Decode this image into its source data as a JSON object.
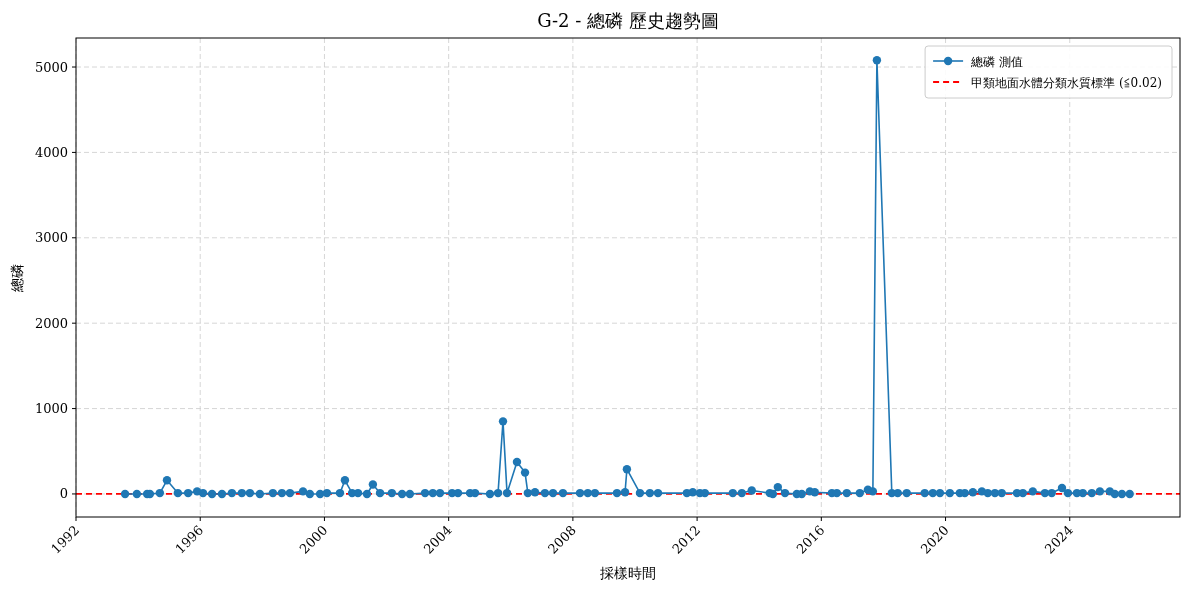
{
  "chart_data": {
    "type": "line",
    "title": "G-2 - 總磷 歷史趨勢圖",
    "xlabel": "採樣時間",
    "ylabel": "總磷",
    "xlim": [
      1992,
      2027.55
    ],
    "ylim": [
      -270,
      5340
    ],
    "xticks": [
      1992,
      1996,
      2000,
      2004,
      2008,
      2012,
      2016,
      2020,
      2024
    ],
    "yticks": [
      0,
      1000,
      2000,
      3000,
      4000,
      5000
    ],
    "grid": true,
    "legend": "top right",
    "marker": "circle",
    "line_style": "solid",
    "x": [
      1993.58,
      1993.96,
      1994.29,
      1994.38,
      1994.7,
      1994.93,
      1995.28,
      1995.61,
      1995.9,
      1996.09,
      1996.38,
      1996.7,
      1997.02,
      1997.34,
      1997.6,
      1997.92,
      1998.34,
      1998.63,
      1998.89,
      1999.31,
      1999.53,
      1999.86,
      2000.08,
      2000.5,
      2000.66,
      2000.89,
      2001.08,
      2001.37,
      2001.56,
      2001.79,
      2002.17,
      2002.5,
      2002.75,
      2003.24,
      2003.49,
      2003.72,
      2004.11,
      2004.3,
      2004.69,
      2004.85,
      2005.33,
      2005.59,
      2005.75,
      2005.88,
      2006.2,
      2006.46,
      2006.55,
      2006.78,
      2007.1,
      2007.36,
      2007.68,
      2008.23,
      2008.48,
      2008.71,
      2009.42,
      2009.68,
      2009.74,
      2010.16,
      2010.48,
      2010.74,
      2011.67,
      2011.86,
      2012.09,
      2012.25,
      2013.15,
      2013.44,
      2013.76,
      2014.34,
      2014.44,
      2014.6,
      2014.83,
      2015.21,
      2015.37,
      2015.63,
      2015.79,
      2016.34,
      2016.5,
      2016.82,
      2017.24,
      2017.5,
      2017.66,
      2017.79,
      2018.27,
      2018.46,
      2018.75,
      2019.33,
      2019.59,
      2019.82,
      2020.14,
      2020.46,
      2020.62,
      2020.88,
      2021.17,
      2021.36,
      2021.59,
      2021.81,
      2022.3,
      2022.49,
      2022.81,
      2023.2,
      2023.42,
      2023.75,
      2023.94,
      2024.23,
      2024.42,
      2024.71,
      2024.97,
      2025.29,
      2025.45,
      2025.68,
      2025.93
    ],
    "series": [
      {
        "name": "總磷 測值",
        "color": "#1f77b4",
        "values": [
          0,
          0,
          0,
          0,
          10,
          160,
          10,
          10,
          30,
          10,
          0,
          0,
          10,
          10,
          10,
          0,
          10,
          10,
          10,
          30,
          0,
          0,
          10,
          10,
          160,
          10,
          10,
          0,
          110,
          10,
          10,
          0,
          0,
          10,
          10,
          10,
          10,
          10,
          10,
          10,
          0,
          10,
          850,
          10,
          375,
          250,
          10,
          20,
          10,
          10,
          10,
          10,
          10,
          10,
          10,
          20,
          290,
          10,
          10,
          10,
          10,
          20,
          10,
          10,
          10,
          10,
          40,
          10,
          0,
          80,
          10,
          0,
          0,
          30,
          20,
          10,
          10,
          10,
          10,
          50,
          30,
          5080,
          10,
          10,
          10,
          10,
          10,
          10,
          10,
          10,
          10,
          20,
          30,
          10,
          10,
          10,
          10,
          10,
          30,
          10,
          10,
          70,
          10,
          10,
          10,
          10,
          30,
          30,
          0,
          0,
          0
        ]
      }
    ],
    "ref_lines": [
      {
        "axis": "y",
        "value": 0.02,
        "label": "甲類地面水體分類水質標準 (≦0.02)",
        "color": "#ff0000",
        "line_style": "dashed"
      }
    ]
  }
}
